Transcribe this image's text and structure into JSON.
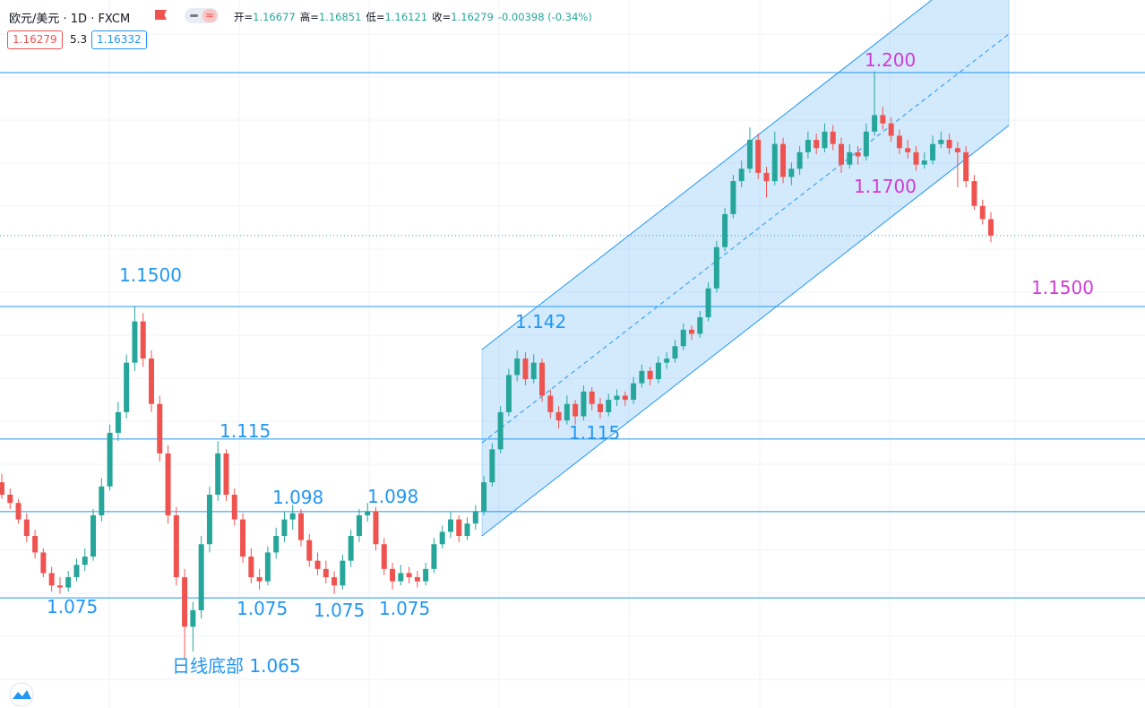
{
  "chart_data": {
    "type": "candlestick",
    "symbol": "欧元/美元 · 1D · FXCM",
    "ohlc_header": [
      {
        "label": "开=",
        "value": "1.16677"
      },
      {
        "label": "高=",
        "value": "1.16851"
      },
      {
        "label": "低=",
        "value": "1.16121"
      },
      {
        "label": "收=",
        "value": "1.16279"
      },
      {
        "label": "",
        "value": "-0.00398 (-0.34%)"
      }
    ],
    "badges": [
      "1.16279",
      "5.3",
      "1.16332"
    ],
    "ylim": [
      1.0483,
      1.2199
    ],
    "up_color": "#26a69a",
    "down_color": "#ef5350",
    "level_color": "#2196f3",
    "levels": [
      1.2023,
      1.1456,
      1.1135,
      1.0959,
      1.075
    ],
    "series": [
      {
        "name": "EURUSD",
        "values": [
          [
            1.103,
            1.105,
            1.099,
            1.1
          ],
          [
            1.1,
            1.1015,
            1.0965,
            1.098
          ],
          [
            1.098,
            1.099,
            1.093,
            1.094
          ],
          [
            1.094,
            1.0955,
            1.0885,
            1.09
          ],
          [
            1.09,
            1.0915,
            1.0845,
            1.086
          ],
          [
            1.086,
            1.087,
            1.08,
            1.081
          ],
          [
            1.081,
            1.0825,
            1.0765,
            1.078
          ],
          [
            1.078,
            1.08,
            1.076,
            1.0775
          ],
          [
            1.0775,
            1.0815,
            1.0765,
            1.08
          ],
          [
            1.08,
            1.0845,
            1.079,
            1.083
          ],
          [
            1.083,
            1.087,
            1.0815,
            1.085
          ],
          [
            1.085,
            1.0965,
            1.084,
            1.095
          ],
          [
            1.095,
            1.104,
            1.0935,
            1.102
          ],
          [
            1.102,
            1.117,
            1.101,
            1.115
          ],
          [
            1.115,
            1.1225,
            1.113,
            1.12
          ],
          [
            1.12,
            1.134,
            1.1185,
            1.132
          ],
          [
            1.132,
            1.1456,
            1.13,
            1.142
          ],
          [
            1.142,
            1.144,
            1.131,
            1.133
          ],
          [
            1.133,
            1.135,
            1.12,
            1.122
          ],
          [
            1.122,
            1.124,
            1.108,
            1.11
          ],
          [
            1.11,
            1.112,
            1.093,
            1.095
          ],
          [
            1.095,
            1.097,
            1.078,
            1.08
          ],
          [
            1.08,
            1.082,
            1.0602,
            1.068
          ],
          [
            1.068,
            1.074,
            1.062,
            1.072
          ],
          [
            1.072,
            1.09,
            1.07,
            1.088
          ],
          [
            1.088,
            1.102,
            1.086,
            1.1
          ],
          [
            1.1,
            1.113,
            1.0985,
            1.11
          ],
          [
            1.11,
            1.111,
            1.0985,
            1.1
          ],
          [
            1.1,
            1.1015,
            1.0925,
            1.094
          ],
          [
            1.094,
            1.0955,
            1.0835,
            1.085
          ],
          [
            1.085,
            1.087,
            1.0785,
            1.08
          ],
          [
            1.08,
            1.082,
            1.077,
            1.079
          ],
          [
            1.079,
            1.0875,
            1.078,
            1.086
          ],
          [
            1.086,
            1.092,
            1.0845,
            1.09
          ],
          [
            1.09,
            1.096,
            1.0885,
            1.094
          ],
          [
            1.094,
            1.0975,
            1.0915,
            1.0955
          ],
          [
            1.0955,
            1.0965,
            1.0875,
            1.089
          ],
          [
            1.089,
            1.0905,
            1.0825,
            1.084
          ],
          [
            1.084,
            1.086,
            1.0805,
            1.082
          ],
          [
            1.082,
            1.084,
            1.0785,
            1.08
          ],
          [
            1.08,
            1.0815,
            1.076,
            1.078
          ],
          [
            1.078,
            1.0855,
            1.077,
            1.084
          ],
          [
            1.084,
            1.0915,
            1.0825,
            1.09
          ],
          [
            1.09,
            1.0965,
            1.0885,
            1.095
          ],
          [
            1.095,
            1.098,
            1.0935,
            1.096
          ],
          [
            1.096,
            1.097,
            1.0865,
            1.088
          ],
          [
            1.088,
            1.0895,
            1.0805,
            1.082
          ],
          [
            1.082,
            1.0835,
            1.077,
            1.079
          ],
          [
            1.079,
            1.083,
            1.078,
            1.081
          ],
          [
            1.081,
            1.0825,
            1.0785,
            1.08
          ],
          [
            1.08,
            1.0815,
            1.0775,
            1.079
          ],
          [
            1.079,
            1.0835,
            1.078,
            1.082
          ],
          [
            1.082,
            1.0895,
            1.081,
            1.088
          ],
          [
            1.088,
            1.0925,
            1.087,
            1.091
          ],
          [
            1.091,
            1.096,
            1.0895,
            1.094
          ],
          [
            1.094,
            1.095,
            1.0885,
            1.09
          ],
          [
            1.09,
            1.0945,
            1.089,
            1.093
          ],
          [
            1.093,
            1.0975,
            1.0915,
            1.096
          ],
          [
            1.096,
            1.1045,
            1.095,
            1.103
          ],
          [
            1.103,
            1.1125,
            1.102,
            1.111
          ],
          [
            1.111,
            1.1215,
            1.11,
            1.12
          ],
          [
            1.12,
            1.1305,
            1.119,
            1.129
          ],
          [
            1.129,
            1.135,
            1.1275,
            1.133
          ],
          [
            1.133,
            1.1345,
            1.1265,
            1.128
          ],
          [
            1.128,
            1.134,
            1.127,
            1.132
          ],
          [
            1.132,
            1.133,
            1.1225,
            1.124
          ],
          [
            1.124,
            1.1255,
            1.1185,
            1.12
          ],
          [
            1.12,
            1.1215,
            1.116,
            1.118
          ],
          [
            1.118,
            1.124,
            1.117,
            1.122
          ],
          [
            1.122,
            1.123,
            1.117,
            1.119
          ],
          [
            1.119,
            1.1265,
            1.118,
            1.125
          ],
          [
            1.125,
            1.126,
            1.1205,
            1.122
          ],
          [
            1.122,
            1.1235,
            1.1185,
            1.12
          ],
          [
            1.12,
            1.1245,
            1.119,
            1.123
          ],
          [
            1.123,
            1.1255,
            1.1215,
            1.124
          ],
          [
            1.124,
            1.125,
            1.1215,
            1.123
          ],
          [
            1.123,
            1.1285,
            1.122,
            1.127
          ],
          [
            1.127,
            1.1315,
            1.126,
            1.13
          ],
          [
            1.13,
            1.131,
            1.1265,
            1.128
          ],
          [
            1.128,
            1.1335,
            1.127,
            1.132
          ],
          [
            1.132,
            1.1345,
            1.1305,
            1.133
          ],
          [
            1.133,
            1.1375,
            1.132,
            1.136
          ],
          [
            1.136,
            1.1415,
            1.135,
            1.14
          ],
          [
            1.14,
            1.141,
            1.1375,
            1.139
          ],
          [
            1.139,
            1.1445,
            1.138,
            1.143
          ],
          [
            1.143,
            1.1515,
            1.142,
            1.15
          ],
          [
            1.15,
            1.1615,
            1.149,
            1.16
          ],
          [
            1.16,
            1.1695,
            1.159,
            1.168
          ],
          [
            1.168,
            1.1775,
            1.167,
            1.176
          ],
          [
            1.176,
            1.181,
            1.1745,
            1.179
          ],
          [
            1.179,
            1.189,
            1.178,
            1.186
          ],
          [
            1.186,
            1.1875,
            1.1765,
            1.178
          ],
          [
            1.178,
            1.1795,
            1.172,
            1.176
          ],
          [
            1.176,
            1.188,
            1.175,
            1.185
          ],
          [
            1.185,
            1.1865,
            1.1755,
            1.177
          ],
          [
            1.177,
            1.1805,
            1.175,
            1.179
          ],
          [
            1.179,
            1.1845,
            1.1775,
            1.183
          ],
          [
            1.183,
            1.188,
            1.1815,
            1.186
          ],
          [
            1.186,
            1.1875,
            1.1825,
            1.184
          ],
          [
            1.184,
            1.19,
            1.183,
            1.188
          ],
          [
            1.188,
            1.1895,
            1.1835,
            1.185
          ],
          [
            1.185,
            1.1865,
            1.178,
            1.18
          ],
          [
            1.18,
            1.185,
            1.179,
            1.183
          ],
          [
            1.183,
            1.1845,
            1.18,
            1.182
          ],
          [
            1.182,
            1.19,
            1.181,
            1.188
          ],
          [
            1.188,
            1.2026,
            1.187,
            1.192
          ],
          [
            1.192,
            1.194,
            1.1885,
            1.19
          ],
          [
            1.19,
            1.1915,
            1.1855,
            1.187
          ],
          [
            1.187,
            1.1885,
            1.1825,
            1.184
          ],
          [
            1.184,
            1.186,
            1.1815,
            1.183
          ],
          [
            1.183,
            1.1845,
            1.1785,
            1.18
          ],
          [
            1.18,
            1.183,
            1.179,
            1.181
          ],
          [
            1.181,
            1.187,
            1.18,
            1.185
          ],
          [
            1.185,
            1.188,
            1.184,
            1.186
          ],
          [
            1.186,
            1.1875,
            1.1825,
            1.184
          ],
          [
            1.184,
            1.1855,
            1.1745,
            1.183
          ],
          [
            1.183,
            1.1845,
            1.1745,
            1.176
          ],
          [
            1.176,
            1.1775,
            1.169,
            1.17
          ],
          [
            1.17,
            1.1715,
            1.1655,
            1.1668
          ],
          [
            1.16677,
            1.16851,
            1.16121,
            1.16279
          ]
        ]
      }
    ],
    "annotations": [
      {
        "text": "1.1500",
        "color": "#2196f3"
      },
      {
        "text": "1.115",
        "color": "#2196f3"
      },
      {
        "text": "1.098",
        "color": "#2196f3"
      },
      {
        "text": "1.098",
        "color": "#2196f3"
      },
      {
        "text": "1.075",
        "color": "#2196f3"
      },
      {
        "text": "1.075",
        "color": "#2196f3"
      },
      {
        "text": "1.075",
        "color": "#2196f3"
      },
      {
        "text": "1.075",
        "color": "#2196f3"
      },
      {
        "text": "日线底部 1.065",
        "color": "#2196f3"
      },
      {
        "text": "1.142",
        "color": "#2196f3"
      },
      {
        "text": "1.115",
        "color": "#2196f3"
      },
      {
        "text": "1.200",
        "color": "#d03bd4"
      },
      {
        "text": "1.1700",
        "color": "#d03bd4"
      },
      {
        "text": "1.1500",
        "color": "#d03bd4"
      }
    ]
  }
}
